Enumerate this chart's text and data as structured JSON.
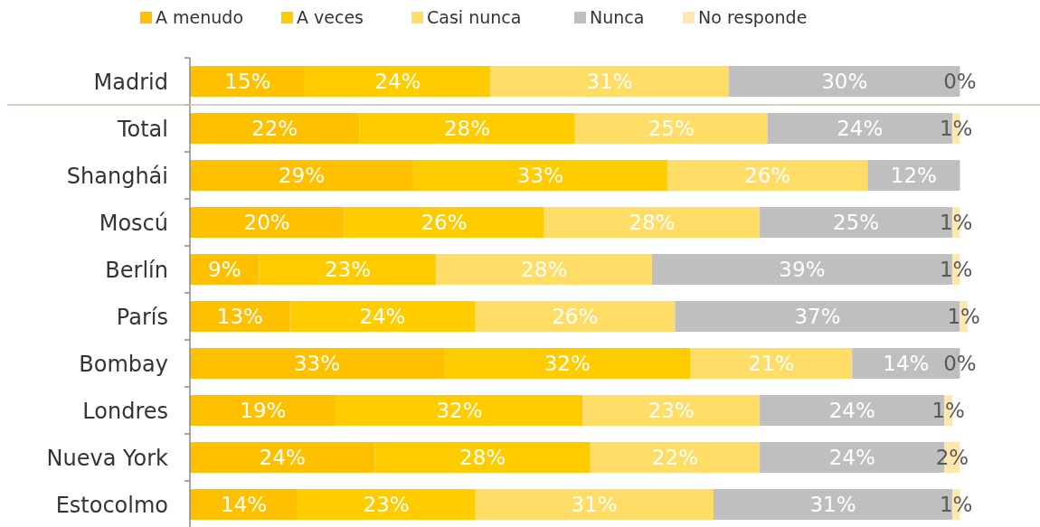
{
  "chart_data": {
    "type": "bar",
    "orientation": "horizontal",
    "stacked": true,
    "legend": "top",
    "categories": [
      "Madrid",
      "Total",
      "Shanghái",
      "Moscú",
      "Berlín",
      "París",
      "Bombay",
      "Londres",
      "Nueva York",
      "Estocolmo"
    ],
    "series": [
      {
        "name": "A menudo",
        "color": "#ffc000",
        "values": [
          15,
          22,
          29,
          20,
          9,
          13,
          33,
          19,
          24,
          14
        ],
        "value_labels": [
          "15%",
          "22%",
          "29%",
          "20%",
          "9%",
          "13%",
          "33%",
          "19%",
          "24%",
          "14%"
        ]
      },
      {
        "name": "A veces",
        "color": "#ffcc00",
        "values": [
          24,
          28,
          33,
          26,
          23,
          24,
          32,
          32,
          28,
          23
        ],
        "value_labels": [
          "24%",
          "28%",
          "33%",
          "26%",
          "23%",
          "24%",
          "32%",
          "32%",
          "28%",
          "23%"
        ]
      },
      {
        "name": "Casi nunca",
        "color": "#ffdd66",
        "values": [
          31,
          25,
          26,
          28,
          28,
          26,
          21,
          23,
          22,
          31
        ],
        "value_labels": [
          "31%",
          "25%",
          "26%",
          "28%",
          "28%",
          "26%",
          "21%",
          "23%",
          "22%",
          "31%"
        ]
      },
      {
        "name": "Nunca",
        "color": "#bfbfbf",
        "values": [
          30,
          24,
          12,
          25,
          39,
          37,
          14,
          24,
          24,
          31
        ],
        "value_labels": [
          "30%",
          "24%",
          "12%",
          "25%",
          "39%",
          "37%",
          "14%",
          "24%",
          "24%",
          "31%"
        ]
      },
      {
        "name": "No responde",
        "color": "#ffe8b0",
        "values": [
          0,
          1,
          0,
          1,
          1,
          1,
          0,
          1,
          2,
          1
        ],
        "value_labels": [
          "0%",
          "1%",
          null,
          "1%",
          "1%",
          "1%",
          "0%",
          "1%",
          "2%",
          "1%"
        ]
      }
    ]
  }
}
